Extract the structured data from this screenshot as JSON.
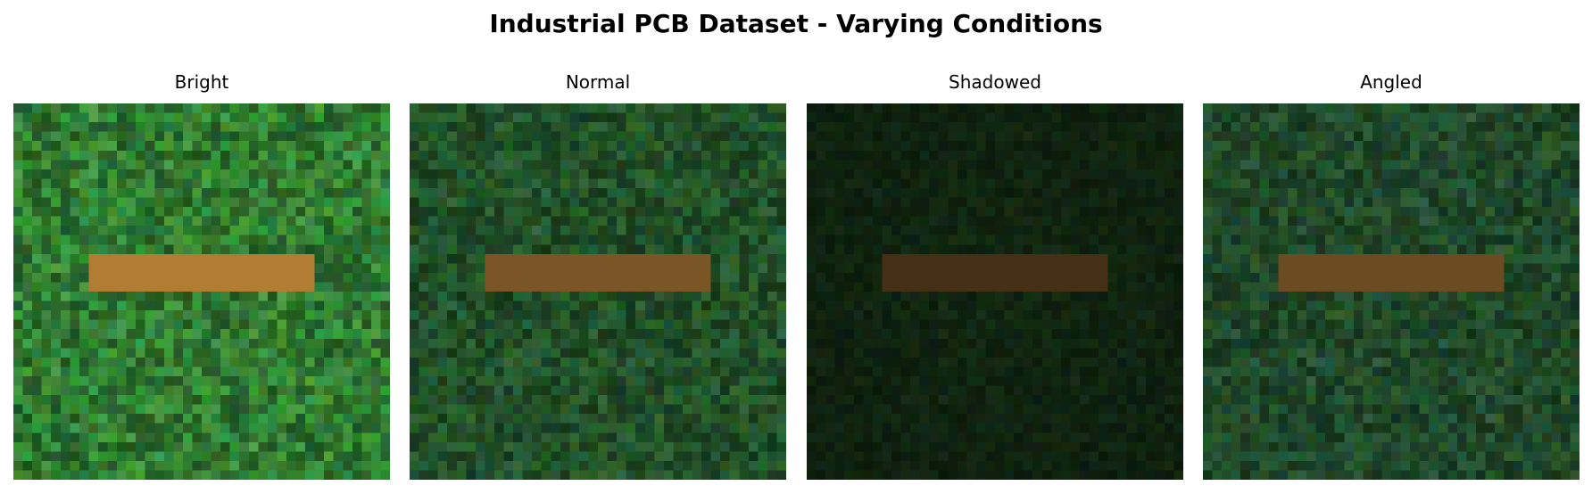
{
  "figure": {
    "title": "Industrial PCB Dataset - Varying Conditions"
  },
  "panels": [
    {
      "title": "Bright",
      "board_color": "#2e7a2e",
      "board_variation": 0.35,
      "pad_color": "#b07d33",
      "vignette": 0.0
    },
    {
      "title": "Normal",
      "board_color": "#1f4f24",
      "board_variation": 0.35,
      "pad_color": "#7a5526",
      "vignette": 0.0
    },
    {
      "title": "Shadowed",
      "board_color": "#10280f",
      "board_variation": 0.28,
      "pad_color": "#463015",
      "vignette": 0.35
    },
    {
      "title": "Angled",
      "board_color": "#1d4725",
      "board_variation": 0.35,
      "pad_color": "#6b4c22",
      "vignette": 0.0
    }
  ]
}
